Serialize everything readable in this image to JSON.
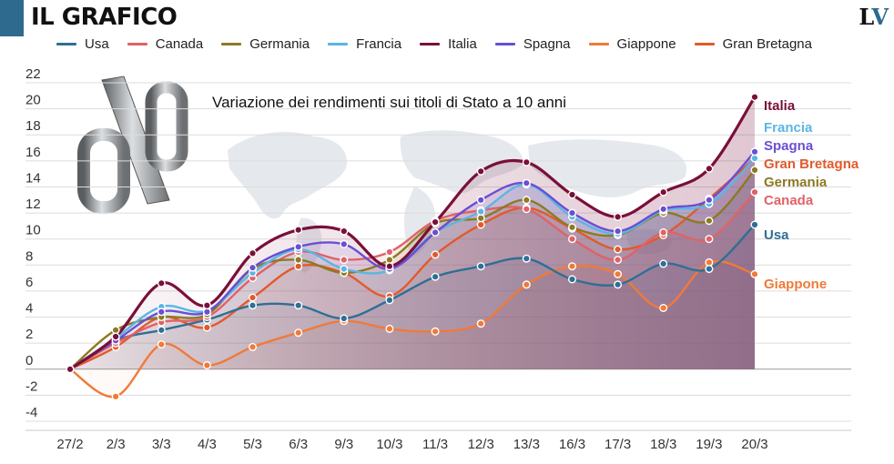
{
  "header": {
    "title": "IL GRAFICO",
    "logo_main": "L",
    "logo_accent": "V",
    "accent_color": "#2e6a8e"
  },
  "chart_data": {
    "type": "line",
    "title": "Variazione dei rendimenti sui titoli di Stato a 10 anni",
    "categories": [
      "27/2",
      "2/3",
      "3/3",
      "4/3",
      "5/3",
      "6/3",
      "9/3",
      "10/3",
      "11/3",
      "12/3",
      "13/3",
      "16/3",
      "17/3",
      "18/3",
      "19/3",
      "20/3"
    ],
    "y_ticks": [
      -4,
      -2,
      0,
      2,
      4,
      6,
      8,
      10,
      12,
      14,
      16,
      18,
      20,
      22
    ],
    "ylim": [
      -4.5,
      22.5
    ],
    "legend_position": "top",
    "series": [
      {
        "name": "Usa",
        "color": "#2e6f96",
        "values": [
          0,
          2.2,
          3.0,
          3.8,
          4.9,
          4.9,
          3.9,
          5.3,
          7.1,
          7.9,
          8.5,
          6.9,
          6.5,
          8.1,
          7.7,
          11.1
        ]
      },
      {
        "name": "Canada",
        "color": "#e06268",
        "values": [
          0,
          2.0,
          3.6,
          4.0,
          7.0,
          9.0,
          8.4,
          9.0,
          11.4,
          12.2,
          12.3,
          10.0,
          8.4,
          10.5,
          10.0,
          13.6
        ]
      },
      {
        "name": "Germania",
        "color": "#8c7a22",
        "values": [
          0,
          3.0,
          4.0,
          4.2,
          7.7,
          8.4,
          7.4,
          8.4,
          11.2,
          11.6,
          13.0,
          10.9,
          10.3,
          12.0,
          11.4,
          15.3
        ]
      },
      {
        "name": "Francia",
        "color": "#5ab6e4",
        "values": [
          0,
          2.4,
          4.8,
          4.5,
          7.4,
          9.2,
          7.7,
          7.6,
          10.5,
          12.1,
          14.2,
          11.7,
          10.4,
          12.2,
          12.7,
          16.2
        ]
      },
      {
        "name": "Italia",
        "color": "#7a0f3a",
        "values": [
          0,
          2.5,
          6.6,
          4.9,
          8.9,
          10.7,
          10.6,
          7.9,
          11.3,
          15.2,
          15.9,
          13.4,
          11.7,
          13.6,
          15.4,
          20.9
        ]
      },
      {
        "name": "Spagna",
        "color": "#6a4fd3",
        "values": [
          0,
          2.2,
          4.4,
          4.4,
          7.8,
          9.4,
          9.6,
          7.7,
          10.5,
          13.0,
          14.3,
          12.0,
          10.6,
          12.3,
          13.0,
          16.7
        ]
      },
      {
        "name": "Giappone",
        "color": "#f07a38",
        "values": [
          0,
          -2.1,
          1.9,
          0.3,
          1.7,
          2.8,
          3.7,
          3.1,
          2.9,
          3.5,
          6.5,
          7.9,
          7.3,
          4.7,
          8.2,
          7.3
        ]
      },
      {
        "name": "Gran Bretagna",
        "color": "#e25a2c",
        "values": [
          0,
          1.7,
          4.0,
          3.2,
          5.5,
          7.9,
          7.4,
          5.6,
          8.8,
          11.1,
          12.4,
          10.8,
          9.2,
          10.3,
          13.1,
          16.2
        ]
      }
    ],
    "end_labels": [
      {
        "series": "Italia",
        "text": "Italia"
      },
      {
        "series": "Francia",
        "text": "Francia"
      },
      {
        "series": "Spagna",
        "text": "Spagna"
      },
      {
        "series": "Gran Bretagna",
        "text": "Gran Bretagna"
      },
      {
        "series": "Germania",
        "text": "Germania"
      },
      {
        "series": "Canada",
        "text": "Canada"
      },
      {
        "series": "Usa",
        "text": "Usa"
      },
      {
        "series": "Giappone",
        "text": "Giappone"
      }
    ]
  }
}
